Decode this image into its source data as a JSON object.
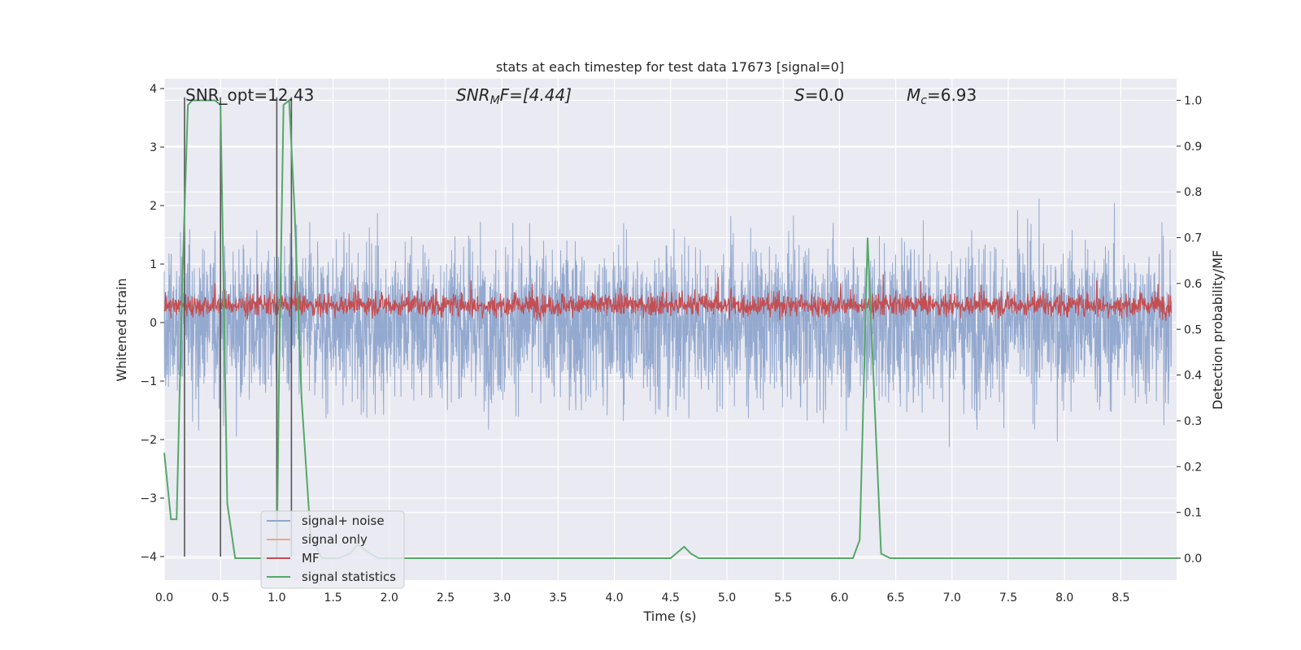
{
  "chart_data": {
    "type": "line",
    "title": "stats at each timestep for test data 17673 [signal=0]",
    "xlabel": "Time (s)",
    "ylabel": "Whitened strain",
    "ylabel_right": "Detection probability/MF",
    "xlim": [
      0.0,
      9.0
    ],
    "ylim": [
      -4.3,
      4.2
    ],
    "ylim_right": [
      -0.045,
      1.045
    ],
    "x_ticks": [
      "0.0",
      "0.5",
      "1.0",
      "1.5",
      "2.0",
      "2.5",
      "3.0",
      "3.5",
      "4.0",
      "4.5",
      "5.0",
      "5.5",
      "6.0",
      "6.5",
      "7.0",
      "7.5",
      "8.0",
      "8.5"
    ],
    "y_ticks": [
      "−4",
      "−3",
      "−2",
      "−1",
      "0",
      "1",
      "2",
      "3",
      "4"
    ],
    "y_ticks_right": [
      "0.0",
      "0.1",
      "0.2",
      "0.3",
      "0.4",
      "0.5",
      "0.6",
      "0.7",
      "0.8",
      "0.9",
      "1.0"
    ],
    "grid": true,
    "legend_position": "lower-left",
    "annotations": {
      "snr_opt": "SNR_opt=12.43",
      "snr_mf_base": "SNR",
      "snr_mf_sub": "M",
      "snr_mf_rest": "F=[4.44]",
      "s_base": "S",
      "s_rest": "=0.0",
      "mc_base": "M",
      "mc_sub": "c",
      "mc_rest": "=6.93"
    },
    "series": [
      {
        "name": "signal+ noise",
        "color": "#8fa5cc",
        "description_level": "noise amplitude ~ within [-3.7, 3.7]"
      },
      {
        "name": "signal only",
        "color": "#e8a888",
        "values": []
      },
      {
        "name": "MF",
        "color": "#c44e52"
      },
      {
        "name": "signal statistics",
        "color": "#55a868",
        "x": [
          0.0,
          0.06,
          0.11,
          0.16,
          0.21,
          0.25,
          0.3,
          0.35,
          0.4,
          0.45,
          0.5,
          0.56,
          0.63,
          0.7,
          0.8,
          0.95,
          1.0,
          1.02,
          1.06,
          1.11,
          1.16,
          1.22,
          1.3,
          1.4,
          1.55,
          1.65,
          1.72,
          1.8,
          1.9,
          2.0,
          2.5,
          3.0,
          3.5,
          4.0,
          4.5,
          4.62,
          4.68,
          4.75,
          5.0,
          5.5,
          6.0,
          6.12,
          6.18,
          6.25,
          6.31,
          6.37,
          6.45,
          7.0,
          7.5,
          8.0,
          8.5,
          9.0
        ],
        "values": [
          0.23,
          0.085,
          0.085,
          0.6,
          0.99,
          1.0,
          1.0,
          1.0,
          1.0,
          1.0,
          0.99,
          0.12,
          0.0,
          0.0,
          0.0,
          0.0,
          0.0,
          0.4,
          0.99,
          1.0,
          0.75,
          0.35,
          0.05,
          0.0,
          0.0,
          0.01,
          0.03,
          0.015,
          0.0,
          0.0,
          0.0,
          0.0,
          0.0,
          0.0,
          0.0,
          0.025,
          0.01,
          0.0,
          0.0,
          0.0,
          0.0,
          0.0,
          0.04,
          0.7,
          0.35,
          0.01,
          0.0,
          0.0,
          0.0,
          0.0,
          0.0,
          0.0
        ]
      }
    ],
    "vertical_lines_x": [
      0.18,
      0.5,
      1.0,
      1.13
    ]
  },
  "colors": {
    "axes_bg": "#eaeaf2",
    "grid": "#ffffff",
    "vline": "#555555"
  }
}
